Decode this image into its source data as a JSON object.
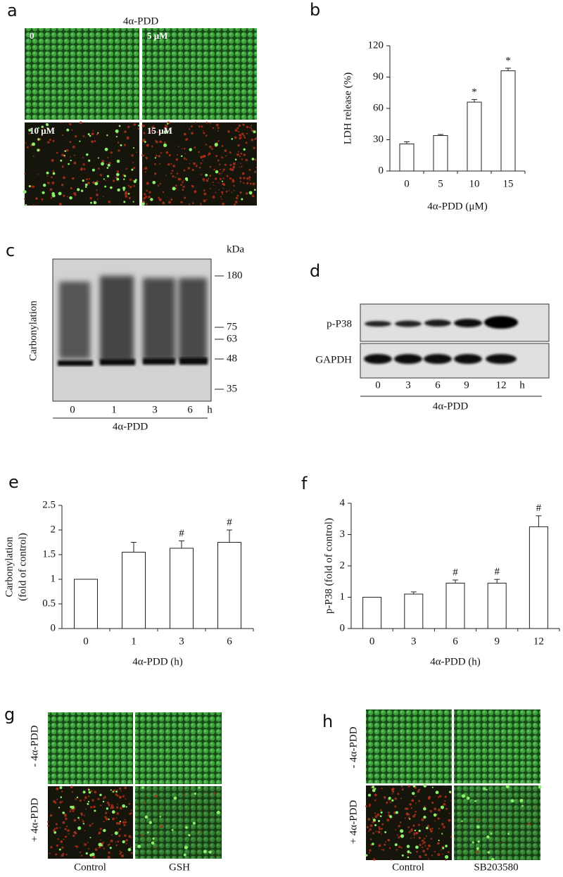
{
  "figure": {
    "a": {
      "letter": "a",
      "treatment": "4α-PDD",
      "labels": [
        "0",
        "5 μM",
        "10 μM",
        "15 μM"
      ]
    },
    "c": {
      "letter": "c",
      "ylabel": "Carbonylation",
      "unit": "kDa",
      "markers": [
        "180",
        "75",
        "63",
        "48",
        "35"
      ],
      "lanes": [
        "0",
        "1",
        "3",
        "6"
      ],
      "time_unit": "h",
      "treatment": "4α-PDD"
    },
    "d": {
      "letter": "d",
      "rows": [
        "p-P38",
        "GAPDH"
      ],
      "lanes": [
        "0",
        "3",
        "6",
        "9",
        "12"
      ],
      "time_unit": "h",
      "treatment": "4α-PDD"
    },
    "g": {
      "letter": "g",
      "rows": [
        "- 4α-PDD",
        "+ 4α-PDD"
      ],
      "columns": [
        "Control",
        "GSH"
      ]
    },
    "h": {
      "letter": "h",
      "rows": [
        "- 4α-PDD",
        "+ 4α-PDD"
      ],
      "columns": [
        "Control",
        "SB203580"
      ]
    }
  },
  "chart_data": [
    {
      "type": "bar",
      "letter": "b",
      "ylabel": [
        "LDH release (%)"
      ],
      "xlabel": "4α-PDD (μM)",
      "categories": [
        "0",
        "5",
        "10",
        "15"
      ],
      "values": [
        26,
        34,
        66,
        96
      ],
      "errors": [
        2,
        1,
        2.5,
        2.5
      ],
      "annotations": [
        null,
        null,
        "*",
        "*"
      ],
      "color": "#ffffff",
      "ylim": [
        0,
        120
      ],
      "yticks": [
        0,
        30,
        60,
        90,
        120
      ]
    },
    {
      "type": "bar",
      "letter": "e",
      "ylabel": [
        "Carbonylation",
        "(fold of control)"
      ],
      "xlabel": "4α-PDD (h)",
      "categories": [
        "0",
        "1",
        "3",
        "6"
      ],
      "values": [
        1,
        1.55,
        1.63,
        1.75
      ],
      "errors": [
        0,
        0.2,
        0.15,
        0.25
      ],
      "annotations": [
        null,
        null,
        "#",
        "#"
      ],
      "color": "#ffffff",
      "ylim": [
        0,
        2.5
      ],
      "yticks": [
        0,
        0.5,
        1,
        1.5,
        2,
        2.5
      ]
    },
    {
      "type": "bar",
      "letter": "f",
      "ylabel": [
        "p-P38 (fold of control)"
      ],
      "xlabel": "4α-PDD (h)",
      "categories": [
        "0",
        "3",
        "6",
        "9",
        "12"
      ],
      "values": [
        1,
        1.1,
        1.45,
        1.45,
        3.25
      ],
      "errors": [
        0,
        0.07,
        0.1,
        0.12,
        0.35
      ],
      "annotations": [
        null,
        null,
        "#",
        "#",
        "#"
      ],
      "color": "#ffffff",
      "ylim": [
        0,
        4
      ],
      "yticks": [
        0,
        1,
        2,
        3,
        4
      ]
    }
  ]
}
